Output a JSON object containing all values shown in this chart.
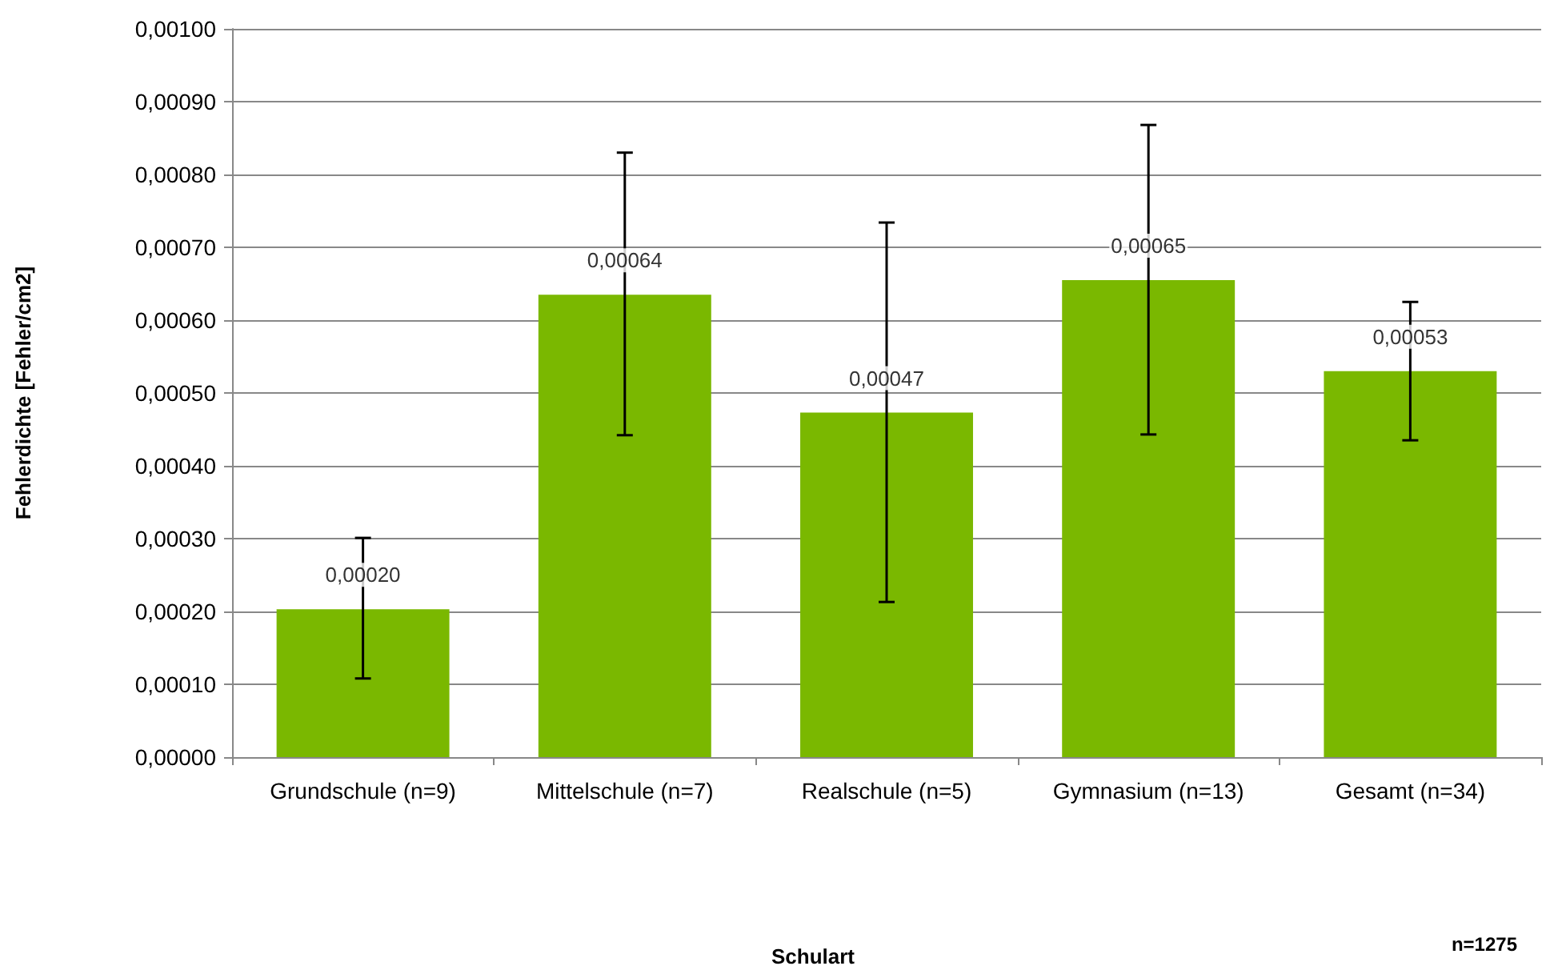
{
  "chart_data": {
    "type": "bar",
    "categories": [
      "Grundschule (n=9)",
      "Mittelschule (n=7)",
      "Realschule (n=5)",
      "Gymnasium (n=13)",
      "Gesamt (n=34)"
    ],
    "values": [
      0.000203,
      0.000635,
      0.000473,
      0.000655,
      0.00053
    ],
    "value_labels": [
      "0,00020",
      "0,00064",
      "0,00047",
      "0,00065",
      "0,00053"
    ],
    "errors": [
      [
        0.000108,
        0.000301
      ],
      [
        0.000442,
        0.00083
      ],
      [
        0.000213,
        0.000734
      ],
      [
        0.000443,
        0.000868
      ],
      [
        0.000435,
        0.000625
      ]
    ],
    "color": "#7ab800",
    "ylabel": "Fehlerdichte [Fehler/cm2]",
    "annotations": [
      "Schulart",
      "n=1275"
    ],
    "ylim": [
      0,
      0.001
    ],
    "yticks": [
      {
        "value": 0,
        "label": "0,00000"
      },
      {
        "value": 0.0001,
        "label": "0,00010"
      },
      {
        "value": 0.0002,
        "label": "0,00020"
      },
      {
        "value": 0.0003,
        "label": "0,00030"
      },
      {
        "value": 0.0004,
        "label": "0,00040"
      },
      {
        "value": 0.0005,
        "label": "0,00050"
      },
      {
        "value": 0.0006,
        "label": "0,00060"
      },
      {
        "value": 0.0007,
        "label": "0,00070"
      },
      {
        "value": 0.0008,
        "label": "0,00080"
      },
      {
        "value": 0.0009,
        "label": "0,00090"
      },
      {
        "value": 0.001,
        "label": "0,00100"
      }
    ],
    "grid": "y"
  }
}
